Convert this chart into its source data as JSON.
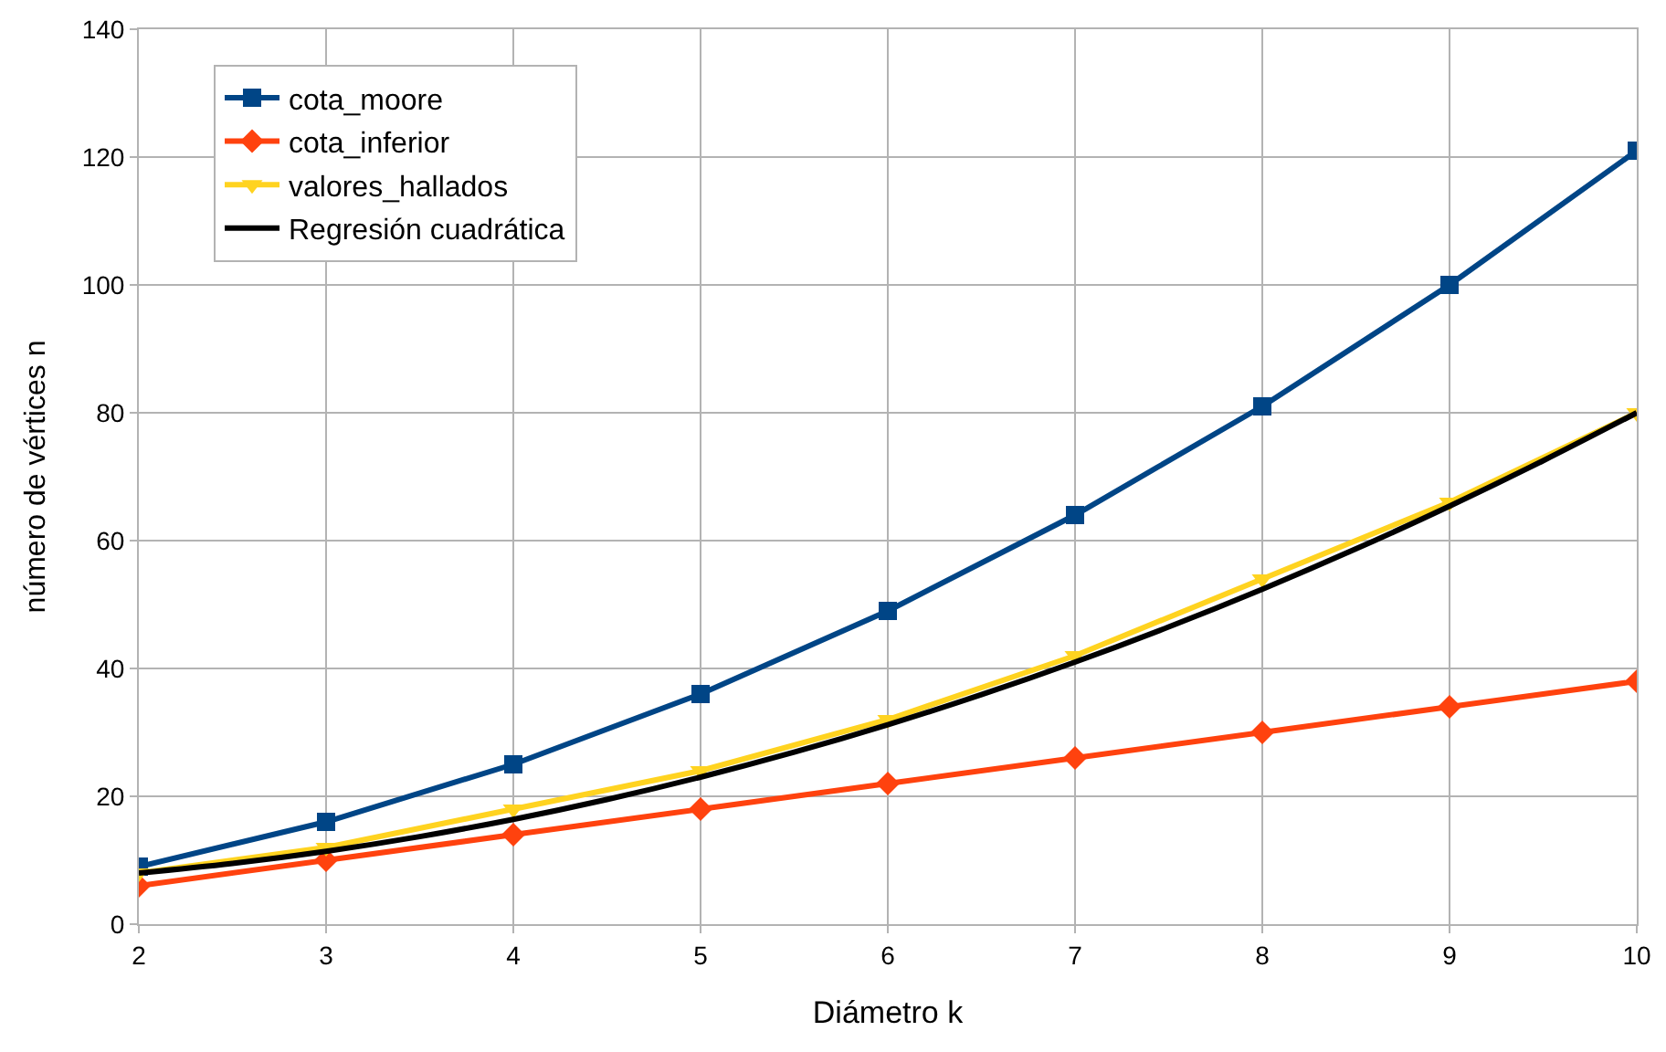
{
  "chart_data": {
    "type": "line",
    "xlabel": "Diámetro k",
    "ylabel": "número de vértices n",
    "xlim": [
      2,
      10
    ],
    "ylim": [
      0,
      140
    ],
    "xticks": [
      2,
      3,
      4,
      5,
      6,
      7,
      8,
      9,
      10
    ],
    "yticks": [
      0,
      20,
      40,
      60,
      80,
      100,
      120,
      140
    ],
    "grid": true,
    "legend": "top left",
    "line_style": "solid",
    "x": [
      2,
      3,
      4,
      5,
      6,
      7,
      8,
      9,
      10
    ],
    "series": [
      {
        "name": "cota_moore",
        "color": "#004586",
        "marker": "square",
        "values": [
          9,
          16,
          25,
          36,
          49,
          64,
          81,
          100,
          121
        ]
      },
      {
        "name": "cota_inferior",
        "color": "#ff420e",
        "marker": "diamond",
        "values": [
          6,
          10,
          14,
          18,
          22,
          26,
          30,
          34,
          38
        ]
      },
      {
        "name": "valores_hallados",
        "color": "#ffd320",
        "marker": "triangle-down",
        "values": [
          8,
          12,
          18,
          24,
          32,
          42,
          54,
          66,
          80
        ]
      },
      {
        "name": "Regresión cuadrática",
        "color": "#000000",
        "marker": "none",
        "x": [
          2,
          2.5,
          3,
          3.5,
          4,
          4.5,
          5,
          5.5,
          6,
          6.5,
          7,
          7.5,
          8,
          8.5,
          9,
          9.5,
          10
        ],
        "values": [
          8,
          9.5,
          11.4,
          13.7,
          16.4,
          19.5,
          23,
          26.9,
          31.2,
          35.9,
          41,
          46.5,
          52.4,
          58.7,
          65.4,
          72.5,
          80
        ]
      }
    ]
  }
}
